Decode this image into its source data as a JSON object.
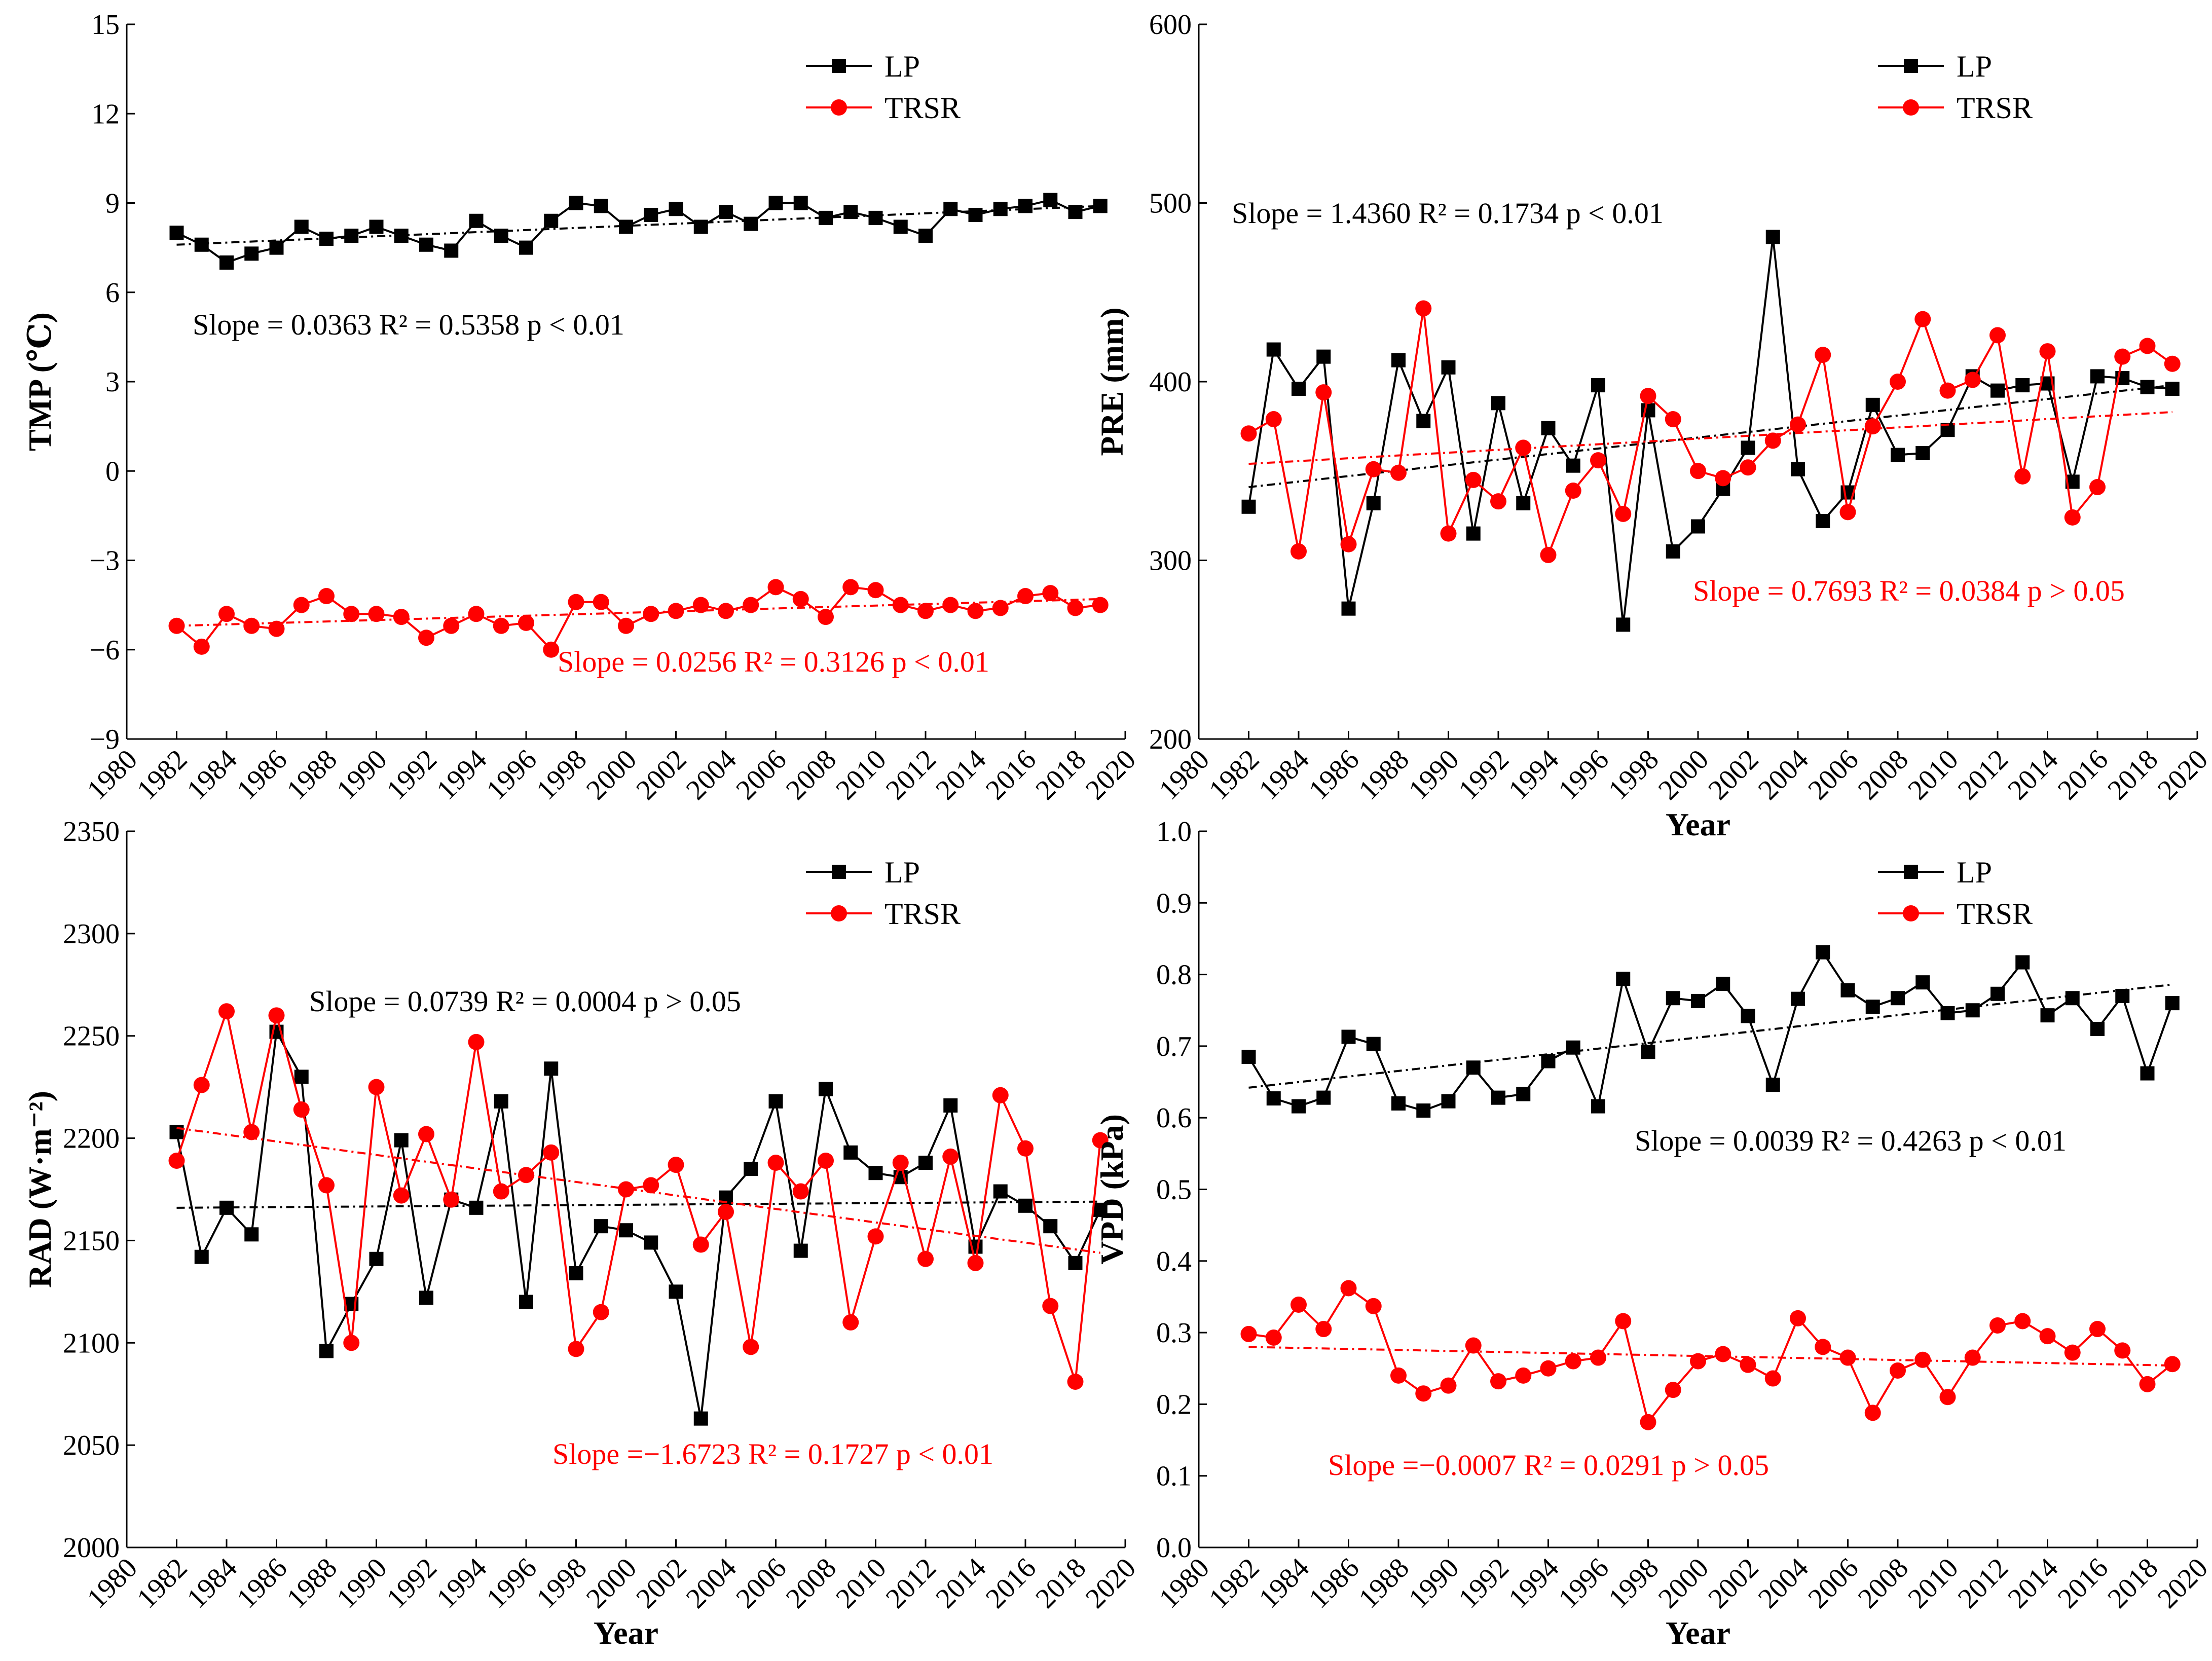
{
  "colors": {
    "lp": "#000000",
    "trsr": "#ff0000"
  },
  "chart_data": [
    {
      "type": "line",
      "ylabel": "TMP (℃)",
      "xlabel": "",
      "xlim": [
        1980,
        2020
      ],
      "x_ticks": [
        1980,
        1982,
        1984,
        1986,
        1988,
        1990,
        1992,
        1994,
        1996,
        1998,
        2000,
        2002,
        2004,
        2006,
        2008,
        2010,
        2012,
        2014,
        2016,
        2018,
        2020
      ],
      "ylim": [
        -9,
        15
      ],
      "y_ticks": [
        -9,
        -6,
        -3,
        0,
        3,
        6,
        9,
        12,
        15
      ],
      "y_tick_labels": [
        "−9",
        "−6",
        "−3",
        "0",
        "3",
        "6",
        "9",
        "12",
        "15"
      ],
      "legend": [
        "LP",
        "TRSR"
      ],
      "legend_position": "top-right",
      "annotations": [
        {
          "text": "Slope = 0.0363  R² = 0.5358  p < 0.01",
          "series": "LP"
        },
        {
          "text": "Slope = 0.0256  R² = 0.3126  p < 0.01",
          "series": "TRSR"
        }
      ],
      "x": [
        1982,
        1983,
        1984,
        1985,
        1986,
        1987,
        1988,
        1989,
        1990,
        1991,
        1992,
        1993,
        1994,
        1995,
        1996,
        1997,
        1998,
        1999,
        2000,
        2001,
        2002,
        2003,
        2004,
        2005,
        2006,
        2007,
        2008,
        2009,
        2010,
        2011,
        2012,
        2013,
        2014,
        2015,
        2016,
        2017,
        2018,
        2019
      ],
      "series": [
        {
          "name": "LP",
          "marker": "square",
          "values": [
            8.0,
            7.6,
            7.0,
            7.3,
            7.5,
            8.2,
            7.8,
            7.9,
            8.2,
            7.9,
            7.6,
            7.4,
            8.4,
            7.9,
            7.5,
            8.4,
            9.0,
            8.9,
            8.2,
            8.6,
            8.8,
            8.2,
            8.7,
            8.3,
            9.0,
            9.0,
            8.5,
            8.7,
            8.5,
            8.2,
            7.9,
            8.8,
            8.6,
            8.8,
            8.9,
            9.1,
            8.7,
            8.9
          ],
          "trend": [
            1982,
            7.6,
            2019,
            8.9
          ]
        },
        {
          "name": "TRSR",
          "marker": "circle",
          "values": [
            -5.2,
            -5.9,
            -4.8,
            -5.2,
            -5.3,
            -4.5,
            -4.2,
            -4.8,
            -4.8,
            -4.9,
            -5.6,
            -5.2,
            -4.8,
            -5.2,
            -5.1,
            -6.0,
            -4.4,
            -4.4,
            -5.2,
            -4.8,
            -4.7,
            -4.5,
            -4.7,
            -4.5,
            -3.9,
            -4.3,
            -4.9,
            -3.9,
            -4.0,
            -4.5,
            -4.7,
            -4.5,
            -4.7,
            -4.6,
            -4.2,
            -4.1,
            -4.6,
            -4.5
          ],
          "trend": [
            1982,
            -5.2,
            2019,
            -4.3
          ]
        }
      ]
    },
    {
      "type": "line",
      "ylabel": "PRE (mm)",
      "xlabel": "Year",
      "xlim": [
        1980,
        2020
      ],
      "x_ticks": [
        1980,
        1982,
        1984,
        1986,
        1988,
        1990,
        1992,
        1994,
        1996,
        1998,
        2000,
        2002,
        2004,
        2006,
        2008,
        2010,
        2012,
        2014,
        2016,
        2018,
        2020
      ],
      "ylim": [
        200,
        600
      ],
      "y_ticks": [
        200,
        300,
        400,
        500,
        600
      ],
      "y_tick_labels": [
        "200",
        "300",
        "400",
        "500",
        "600"
      ],
      "legend": [
        "LP",
        "TRSR"
      ],
      "legend_position": "top-right",
      "annotations": [
        {
          "text": "Slope = 1.4360  R² = 0.1734  p < 0.01",
          "series": "LP"
        },
        {
          "text": "Slope = 0.7693  R² = 0.0384  p > 0.05",
          "series": "TRSR"
        }
      ],
      "x": [
        1982,
        1983,
        1984,
        1985,
        1986,
        1987,
        1988,
        1989,
        1990,
        1991,
        1992,
        1993,
        1994,
        1995,
        1996,
        1997,
        1998,
        1999,
        2000,
        2001,
        2002,
        2003,
        2004,
        2005,
        2006,
        2007,
        2008,
        2009,
        2010,
        2011,
        2012,
        2013,
        2014,
        2015,
        2016,
        2017,
        2018,
        2019
      ],
      "series": [
        {
          "name": "LP",
          "marker": "square",
          "values": [
            330,
            418,
            396,
            414,
            273,
            332,
            412,
            378,
            408,
            315,
            388,
            332,
            374,
            353,
            398,
            264,
            384,
            305,
            319,
            340,
            363,
            481,
            351,
            322,
            338,
            387,
            359,
            360,
            373,
            403,
            395,
            398,
            399,
            344,
            403,
            402,
            397,
            396
          ],
          "trend": [
            1982,
            341,
            2019,
            398
          ]
        },
        {
          "name": "TRSR",
          "marker": "circle",
          "values": [
            371,
            379,
            305,
            394,
            309,
            351,
            349,
            441,
            315,
            345,
            333,
            363,
            303,
            339,
            356,
            326,
            392,
            379,
            350,
            346,
            352,
            367,
            376,
            415,
            327,
            375,
            400,
            435,
            395,
            401,
            426,
            347,
            417,
            324,
            341,
            414,
            420,
            410
          ],
          "trend": [
            1982,
            354,
            2019,
            383
          ]
        }
      ]
    },
    {
      "type": "line",
      "ylabel": "RAD (W·m⁻²)",
      "xlabel": "Year",
      "xlim": [
        1980,
        2020
      ],
      "x_ticks": [
        1980,
        1982,
        1984,
        1986,
        1988,
        1990,
        1992,
        1994,
        1996,
        1998,
        2000,
        2002,
        2004,
        2006,
        2008,
        2010,
        2012,
        2014,
        2016,
        2018,
        2020
      ],
      "ylim": [
        2000,
        2350
      ],
      "y_ticks": [
        2000,
        2050,
        2100,
        2150,
        2200,
        2250,
        2300,
        2350
      ],
      "y_tick_labels": [
        "2000",
        "2050",
        "2100",
        "2150",
        "2200",
        "2250",
        "2300",
        "2350"
      ],
      "legend": [
        "LP",
        "TRSR"
      ],
      "legend_position": "top-right",
      "annotations": [
        {
          "text": "Slope = 0.0739  R² = 0.0004  p > 0.05",
          "series": "LP"
        },
        {
          "text": "Slope =−1.6723  R² = 0.1727  p < 0.01",
          "series": "TRSR"
        }
      ],
      "x": [
        1982,
        1983,
        1984,
        1985,
        1986,
        1987,
        1988,
        1989,
        1990,
        1991,
        1992,
        1993,
        1994,
        1995,
        1996,
        1997,
        1998,
        1999,
        2000,
        2001,
        2002,
        2003,
        2004,
        2005,
        2006,
        2007,
        2008,
        2009,
        2010,
        2011,
        2012,
        2013,
        2014,
        2015,
        2016,
        2017,
        2018,
        2019
      ],
      "series": [
        {
          "name": "LP",
          "marker": "square",
          "values": [
            2203,
            2142,
            2166,
            2153,
            2252,
            2230,
            2096,
            2119,
            2141,
            2199,
            2122,
            2170,
            2166,
            2218,
            2120,
            2234,
            2134,
            2157,
            2155,
            2149,
            2125,
            2063,
            2171,
            2185,
            2218,
            2145,
            2224,
            2193,
            2183,
            2181,
            2188,
            2216,
            2147,
            2174,
            2167,
            2157,
            2139,
            2165
          ],
          "trend": [
            1982,
            2166,
            2019,
            2169
          ]
        },
        {
          "name": "TRSR",
          "marker": "circle",
          "values": [
            2189,
            2226,
            2262,
            2203,
            2260,
            2214,
            2177,
            2100,
            2225,
            2172,
            2202,
            2170,
            2247,
            2174,
            2182,
            2193,
            2097,
            2115,
            2175,
            2177,
            2187,
            2148,
            2164,
            2098,
            2188,
            2174,
            2189,
            2110,
            2152,
            2188,
            2141,
            2191,
            2139,
            2221,
            2195,
            2118,
            2081,
            2199
          ],
          "trend": [
            1982,
            2205,
            2019,
            2144
          ]
        }
      ]
    },
    {
      "type": "line",
      "ylabel": "VPD (kPa)",
      "xlabel": "Year",
      "xlim": [
        1980,
        2020
      ],
      "x_ticks": [
        1980,
        1982,
        1984,
        1986,
        1988,
        1990,
        1992,
        1994,
        1996,
        1998,
        2000,
        2002,
        2004,
        2006,
        2008,
        2010,
        2012,
        2014,
        2016,
        2018,
        2020
      ],
      "ylim": [
        0.0,
        1.0
      ],
      "y_ticks": [
        0.0,
        0.1,
        0.2,
        0.3,
        0.4,
        0.5,
        0.6,
        0.7,
        0.8,
        0.9,
        1.0
      ],
      "y_tick_labels": [
        "0.0",
        "0.1",
        "0.2",
        "0.3",
        "0.4",
        "0.5",
        "0.6",
        "0.7",
        "0.8",
        "0.9",
        "1.0"
      ],
      "legend": [
        "LP",
        "TRSR"
      ],
      "legend_position": "top-right",
      "annotations": [
        {
          "text": "Slope = 0.0039  R² = 0.4263  p < 0.01",
          "series": "LP"
        },
        {
          "text": "Slope =−0.0007  R² = 0.0291  p > 0.05",
          "series": "TRSR"
        }
      ],
      "x": [
        1982,
        1983,
        1984,
        1985,
        1986,
        1987,
        1988,
        1989,
        1990,
        1991,
        1992,
        1993,
        1994,
        1995,
        1996,
        1997,
        1998,
        1999,
        2000,
        2001,
        2002,
        2003,
        2004,
        2005,
        2006,
        2007,
        2008,
        2009,
        2010,
        2011,
        2012,
        2013,
        2014,
        2015,
        2016,
        2017,
        2018,
        2019
      ],
      "series": [
        {
          "name": "LP",
          "marker": "square",
          "values": [
            0.685,
            0.627,
            0.616,
            0.628,
            0.713,
            0.703,
            0.62,
            0.61,
            0.623,
            0.67,
            0.628,
            0.633,
            0.679,
            0.698,
            0.616,
            0.794,
            0.692,
            0.767,
            0.763,
            0.787,
            0.742,
            0.646,
            0.766,
            0.831,
            0.778,
            0.755,
            0.767,
            0.789,
            0.746,
            0.75,
            0.773,
            0.817,
            0.743,
            0.767,
            0.724,
            0.77,
            0.662,
            0.76
          ],
          "trend": [
            1982,
            0.642,
            2019,
            0.786
          ]
        },
        {
          "name": "TRSR",
          "marker": "circle",
          "values": [
            0.298,
            0.293,
            0.339,
            0.305,
            0.362,
            0.337,
            0.24,
            0.215,
            0.226,
            0.282,
            0.232,
            0.24,
            0.25,
            0.26,
            0.265,
            0.316,
            0.175,
            0.22,
            0.26,
            0.27,
            0.255,
            0.236,
            0.32,
            0.28,
            0.265,
            0.188,
            0.247,
            0.262,
            0.21,
            0.265,
            0.31,
            0.316,
            0.295,
            0.272,
            0.305,
            0.275,
            0.228,
            0.256
          ],
          "trend": [
            1982,
            0.28,
            2019,
            0.254
          ]
        }
      ]
    }
  ]
}
